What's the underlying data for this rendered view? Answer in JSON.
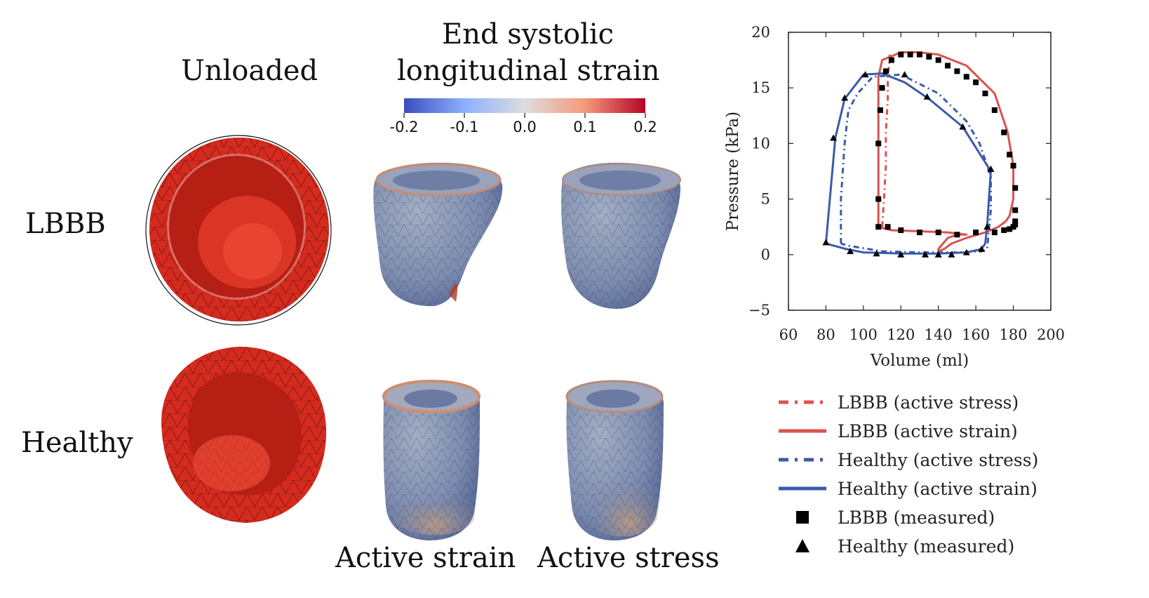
{
  "labels": {
    "unloaded": "Unloaded",
    "colorbar_title_line1": "End systolic",
    "colorbar_title_line2": "longitudinal strain",
    "row_lbbb": "LBBB",
    "row_healthy": "Healthy",
    "col_active_strain": "Active strain",
    "col_active_stress": "Active stress"
  },
  "colorbar": {
    "ticks": [
      "-0.2",
      "-0.1",
      "0.0",
      "0.1",
      "0.2"
    ],
    "colors": [
      "#3b4cc0",
      "#8db0fe",
      "#dddddd",
      "#f49a7b",
      "#b40426"
    ]
  },
  "mesh_colors": {
    "unloaded": "#d42b1e",
    "unloaded_inner": "#b51f14",
    "strain_base": "#7b8fb5",
    "strain_warm": "#c98b6e"
  },
  "chart_data": {
    "type": "line",
    "xlabel": "Volume (ml)",
    "ylabel": "Pressure (kPa)",
    "xlim": [
      60,
      200
    ],
    "ylim": [
      -5,
      20
    ],
    "xticks": [
      60,
      80,
      100,
      120,
      140,
      160,
      180,
      200
    ],
    "yticks": [
      -5,
      0,
      5,
      10,
      15,
      20
    ],
    "grid": false,
    "legend_position": "below",
    "series": [
      {
        "name": "LBBB (active stress)",
        "color": "#d9534f",
        "style": "dashdot",
        "x": [
          110,
          111,
          112,
          112,
          113,
          113,
          114,
          114
        ],
        "y": [
          2.5,
          5,
          8,
          11,
          14,
          16,
          17.5,
          18
        ]
      },
      {
        "name": "LBBB (active strain)",
        "color": "#d9534f",
        "style": "solid",
        "x": [
          108,
          108,
          110,
          120,
          130,
          140,
          155,
          170,
          177,
          180,
          180,
          178,
          176,
          172,
          165,
          155,
          147,
          143,
          140,
          140,
          145,
          150,
          155,
          145,
          130,
          115,
          108
        ],
        "y": [
          2.5,
          16,
          17.5,
          18.2,
          18.2,
          18,
          17,
          14.5,
          11,
          8,
          5,
          3.5,
          3,
          2.5,
          2,
          1.5,
          1,
          0.5,
          0.3,
          0.5,
          1.5,
          1.8,
          1.8,
          2,
          2.1,
          2.2,
          2.5
        ]
      },
      {
        "name": "Healthy (active stress)",
        "color": "#3a5ba9",
        "style": "dashdot",
        "x": [
          88,
          88,
          90,
          92,
          97,
          105,
          120,
          140,
          155,
          162,
          168,
          168,
          166,
          163,
          150,
          130,
          110,
          92,
          88
        ],
        "y": [
          1,
          5,
          10,
          13,
          14.5,
          16,
          16.2,
          14.5,
          12,
          10,
          7,
          4,
          0.5,
          0.3,
          0.2,
          0.2,
          0.3,
          0.8,
          1
        ]
      },
      {
        "name": "Healthy (active strain)",
        "color": "#3a5ba9",
        "style": "solid",
        "x": [
          80,
          85,
          90,
          100,
          110,
          122,
          135,
          153,
          168,
          167,
          166,
          165,
          163,
          155,
          140,
          120,
          100,
          91,
          80
        ],
        "y": [
          1,
          10.5,
          14,
          16.2,
          16.3,
          15.5,
          14,
          11.5,
          7.5,
          5,
          2.5,
          1,
          0.5,
          0.2,
          0.1,
          0.1,
          0.2,
          0.5,
          1
        ]
      },
      {
        "name": "LBBB (measured)",
        "marker": "square",
        "color": "#000000",
        "x": [
          108,
          108,
          108,
          109,
          110,
          112,
          115,
          120,
          125,
          130,
          135,
          140,
          145,
          150,
          155,
          160,
          165,
          170,
          175,
          178,
          180,
          181,
          181,
          181,
          181,
          180,
          178,
          175,
          170,
          160,
          150,
          140,
          130,
          120,
          113
        ],
        "y": [
          2.5,
          5,
          10,
          13,
          15,
          16.5,
          17.5,
          18,
          18,
          18,
          17.8,
          17.5,
          17,
          16.5,
          16,
          15.5,
          14.5,
          13,
          11,
          9,
          8,
          6,
          4,
          3,
          2.7,
          2.5,
          2.3,
          2.2,
          2,
          2,
          1.8,
          2,
          2,
          2.2,
          2.5
        ]
      },
      {
        "name": "Healthy (measured)",
        "marker": "triangle",
        "color": "#000000",
        "x": [
          80,
          84,
          90,
          101,
          122,
          134,
          153,
          168,
          166,
          163,
          155,
          147,
          140,
          133,
          120,
          107,
          93
        ],
        "y": [
          1.1,
          10.5,
          14.1,
          16.2,
          16.2,
          14.2,
          11.5,
          7.7,
          2.5,
          0.5,
          0.2,
          0,
          0,
          0,
          0,
          0.1,
          0.3
        ]
      }
    ]
  }
}
